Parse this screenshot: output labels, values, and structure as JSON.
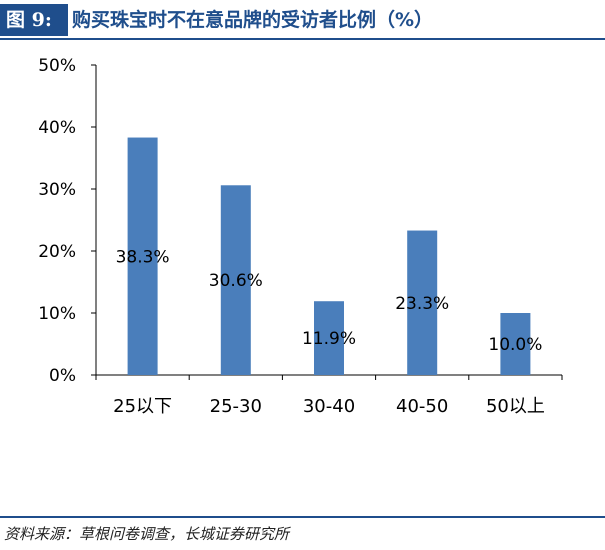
{
  "header": {
    "figure_label": "图 9:",
    "title": "购买珠宝时不在意品牌的受访者比例（%）"
  },
  "footer": {
    "source": "资料来源：草根问卷调查，长城证券研究所"
  },
  "chart_data": {
    "type": "bar",
    "categories": [
      "25以下",
      "25-30",
      "30-40",
      "40-50",
      "50以上"
    ],
    "values": [
      38.3,
      30.6,
      11.9,
      23.3,
      10.0
    ],
    "data_labels": [
      "38.3%",
      "30.6%",
      "11.9%",
      "23.3%",
      "10.0%"
    ],
    "yticks": [
      "0%",
      "10%",
      "20%",
      "30%",
      "40%",
      "50%"
    ],
    "ylim": [
      0,
      50
    ],
    "grid": false,
    "legend": "none",
    "bar_color": "#4A7EBB",
    "title": "",
    "xlabel": "",
    "ylabel": ""
  }
}
